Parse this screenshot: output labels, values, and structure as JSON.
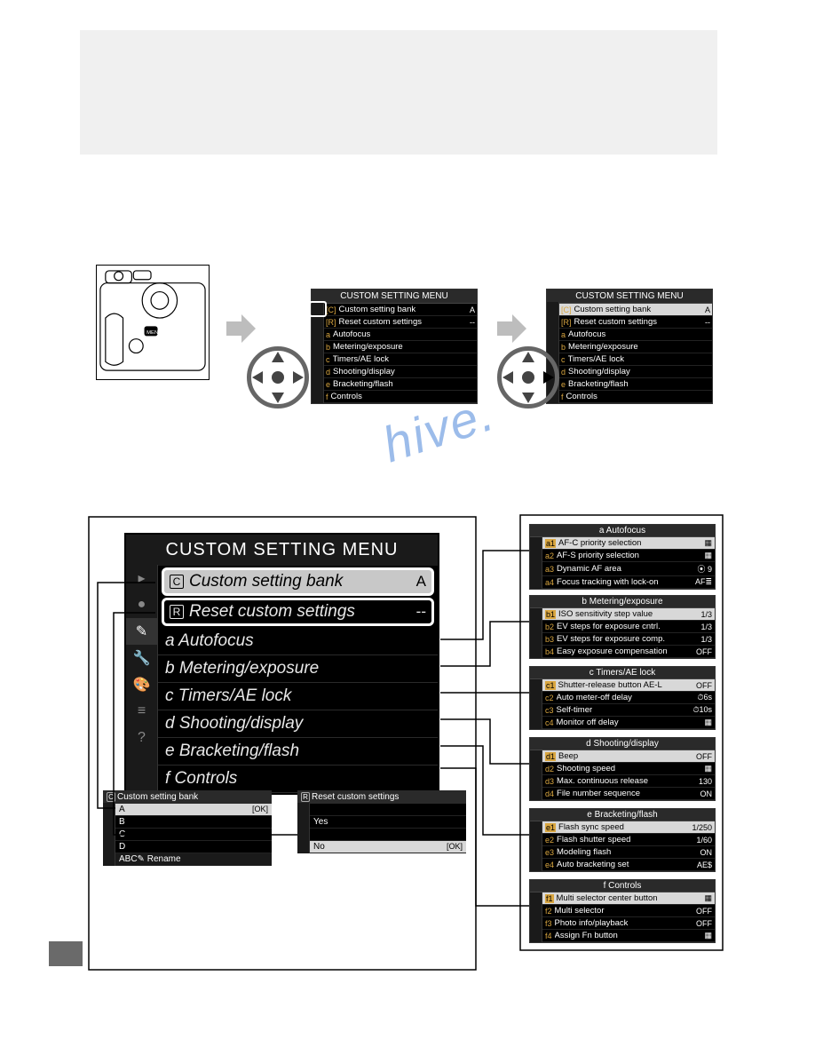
{
  "watermark_text": "hive.",
  "mini_menu_title": "CUSTOM SETTING MENU",
  "mini_menu_rows": [
    {
      "code": "C",
      "label": "Custom setting bank",
      "val": "A"
    },
    {
      "code": "R",
      "label": "Reset custom settings",
      "val": "--"
    },
    {
      "code": "a",
      "label": "Autofocus",
      "val": ""
    },
    {
      "code": "b",
      "label": "Metering/exposure",
      "val": ""
    },
    {
      "code": "c",
      "label": "Timers/AE lock",
      "val": ""
    },
    {
      "code": "d",
      "label": "Shooting/display",
      "val": ""
    },
    {
      "code": "e",
      "label": "Bracketing/flash",
      "val": ""
    },
    {
      "code": "f",
      "label": "Controls",
      "val": ""
    }
  ],
  "main_menu": {
    "title": "CUSTOM SETTING MENU",
    "row_bank": {
      "icon": "C",
      "label": "Custom setting bank",
      "val": "A"
    },
    "row_reset": {
      "icon": "R",
      "label": "Reset custom settings",
      "val": "--"
    },
    "rows": [
      {
        "code": "a",
        "label": "Autofocus"
      },
      {
        "code": "b",
        "label": "Metering/exposure"
      },
      {
        "code": "c",
        "label": "Timers/AE lock"
      },
      {
        "code": "d",
        "label": "Shooting/display"
      },
      {
        "code": "e",
        "label": "Bracketing/flash"
      },
      {
        "code": "f",
        "label": "Controls"
      }
    ]
  },
  "bank_menu": {
    "title": "Custom setting bank",
    "icon": "C",
    "rows": [
      {
        "label": "A",
        "val": "OK",
        "hl": true
      },
      {
        "label": "B",
        "val": ""
      },
      {
        "label": "C",
        "val": ""
      },
      {
        "label": "D",
        "val": ""
      }
    ],
    "footer": "ABC✎ Rename"
  },
  "reset_menu": {
    "title": "Reset custom settings",
    "icon": "R",
    "rows": [
      {
        "label": "",
        "val": ""
      },
      {
        "label": "Yes",
        "val": ""
      },
      {
        "label": "",
        "val": ""
      },
      {
        "label": "No",
        "val": "OK",
        "hl": true
      }
    ]
  },
  "submenus": {
    "a": {
      "title": "a Autofocus",
      "rows": [
        {
          "code": "a1",
          "label": "AF-C priority selection",
          "val": "▦",
          "hl": true
        },
        {
          "code": "a2",
          "label": "AF-S priority selection",
          "val": "▦"
        },
        {
          "code": "a3",
          "label": "Dynamic AF area",
          "val": "⦿ 9"
        },
        {
          "code": "a4",
          "label": "Focus tracking with lock-on",
          "val": "AF≣"
        }
      ]
    },
    "b": {
      "title": "b Metering/exposure",
      "rows": [
        {
          "code": "b1",
          "label": "ISO sensitivity step value",
          "val": "1/3",
          "hl": true
        },
        {
          "code": "b2",
          "label": "EV steps for exposure cntrl.",
          "val": "1/3"
        },
        {
          "code": "b3",
          "label": "EV steps for exposure comp.",
          "val": "1/3"
        },
        {
          "code": "b4",
          "label": "Easy exposure compensation",
          "val": "OFF"
        }
      ]
    },
    "c": {
      "title": "c Timers/AE lock",
      "rows": [
        {
          "code": "c1",
          "label": "Shutter-release button AE-L",
          "val": "OFF",
          "hl": true
        },
        {
          "code": "c2",
          "label": "Auto meter-off delay",
          "val": "⏱6s"
        },
        {
          "code": "c3",
          "label": "Self-timer",
          "val": "⏱10s"
        },
        {
          "code": "c4",
          "label": "Monitor off delay",
          "val": "▦"
        }
      ]
    },
    "d": {
      "title": "d Shooting/display",
      "rows": [
        {
          "code": "d1",
          "label": "Beep",
          "val": "OFF",
          "hl": true
        },
        {
          "code": "d2",
          "label": "Shooting speed",
          "val": "▦"
        },
        {
          "code": "d3",
          "label": "Max. continuous release",
          "val": "130"
        },
        {
          "code": "d4",
          "label": "File number sequence",
          "val": "ON"
        }
      ]
    },
    "e": {
      "title": "e Bracketing/flash",
      "rows": [
        {
          "code": "e1",
          "label": "Flash sync speed",
          "val": "1/250",
          "hl": true
        },
        {
          "code": "e2",
          "label": "Flash shutter speed",
          "val": "1/60"
        },
        {
          "code": "e3",
          "label": "Modeling flash",
          "val": "ON"
        },
        {
          "code": "e4",
          "label": "Auto bracketing set",
          "val": "AE$"
        }
      ]
    },
    "f": {
      "title": "f Controls",
      "rows": [
        {
          "code": "f1",
          "label": "Multi selector center button",
          "val": "▦",
          "hl": true
        },
        {
          "code": "f2",
          "label": "Multi selector",
          "val": "OFF"
        },
        {
          "code": "f3",
          "label": "Photo info/playback",
          "val": "OFF"
        },
        {
          "code": "f4",
          "label": "Assign Fn button",
          "val": "▦"
        }
      ]
    }
  },
  "colors": {
    "page_bg": "#ffffff",
    "header_bg": "#f0f0f0",
    "menu_bg": "#000000",
    "menu_title_bg": "#1a1a1a",
    "hl_bg": "#c8c8c8",
    "orange": "#d9a640",
    "arrow": "#bdbdbd",
    "watermark": "#3c7bd6",
    "badge": "#6a6a6a"
  }
}
